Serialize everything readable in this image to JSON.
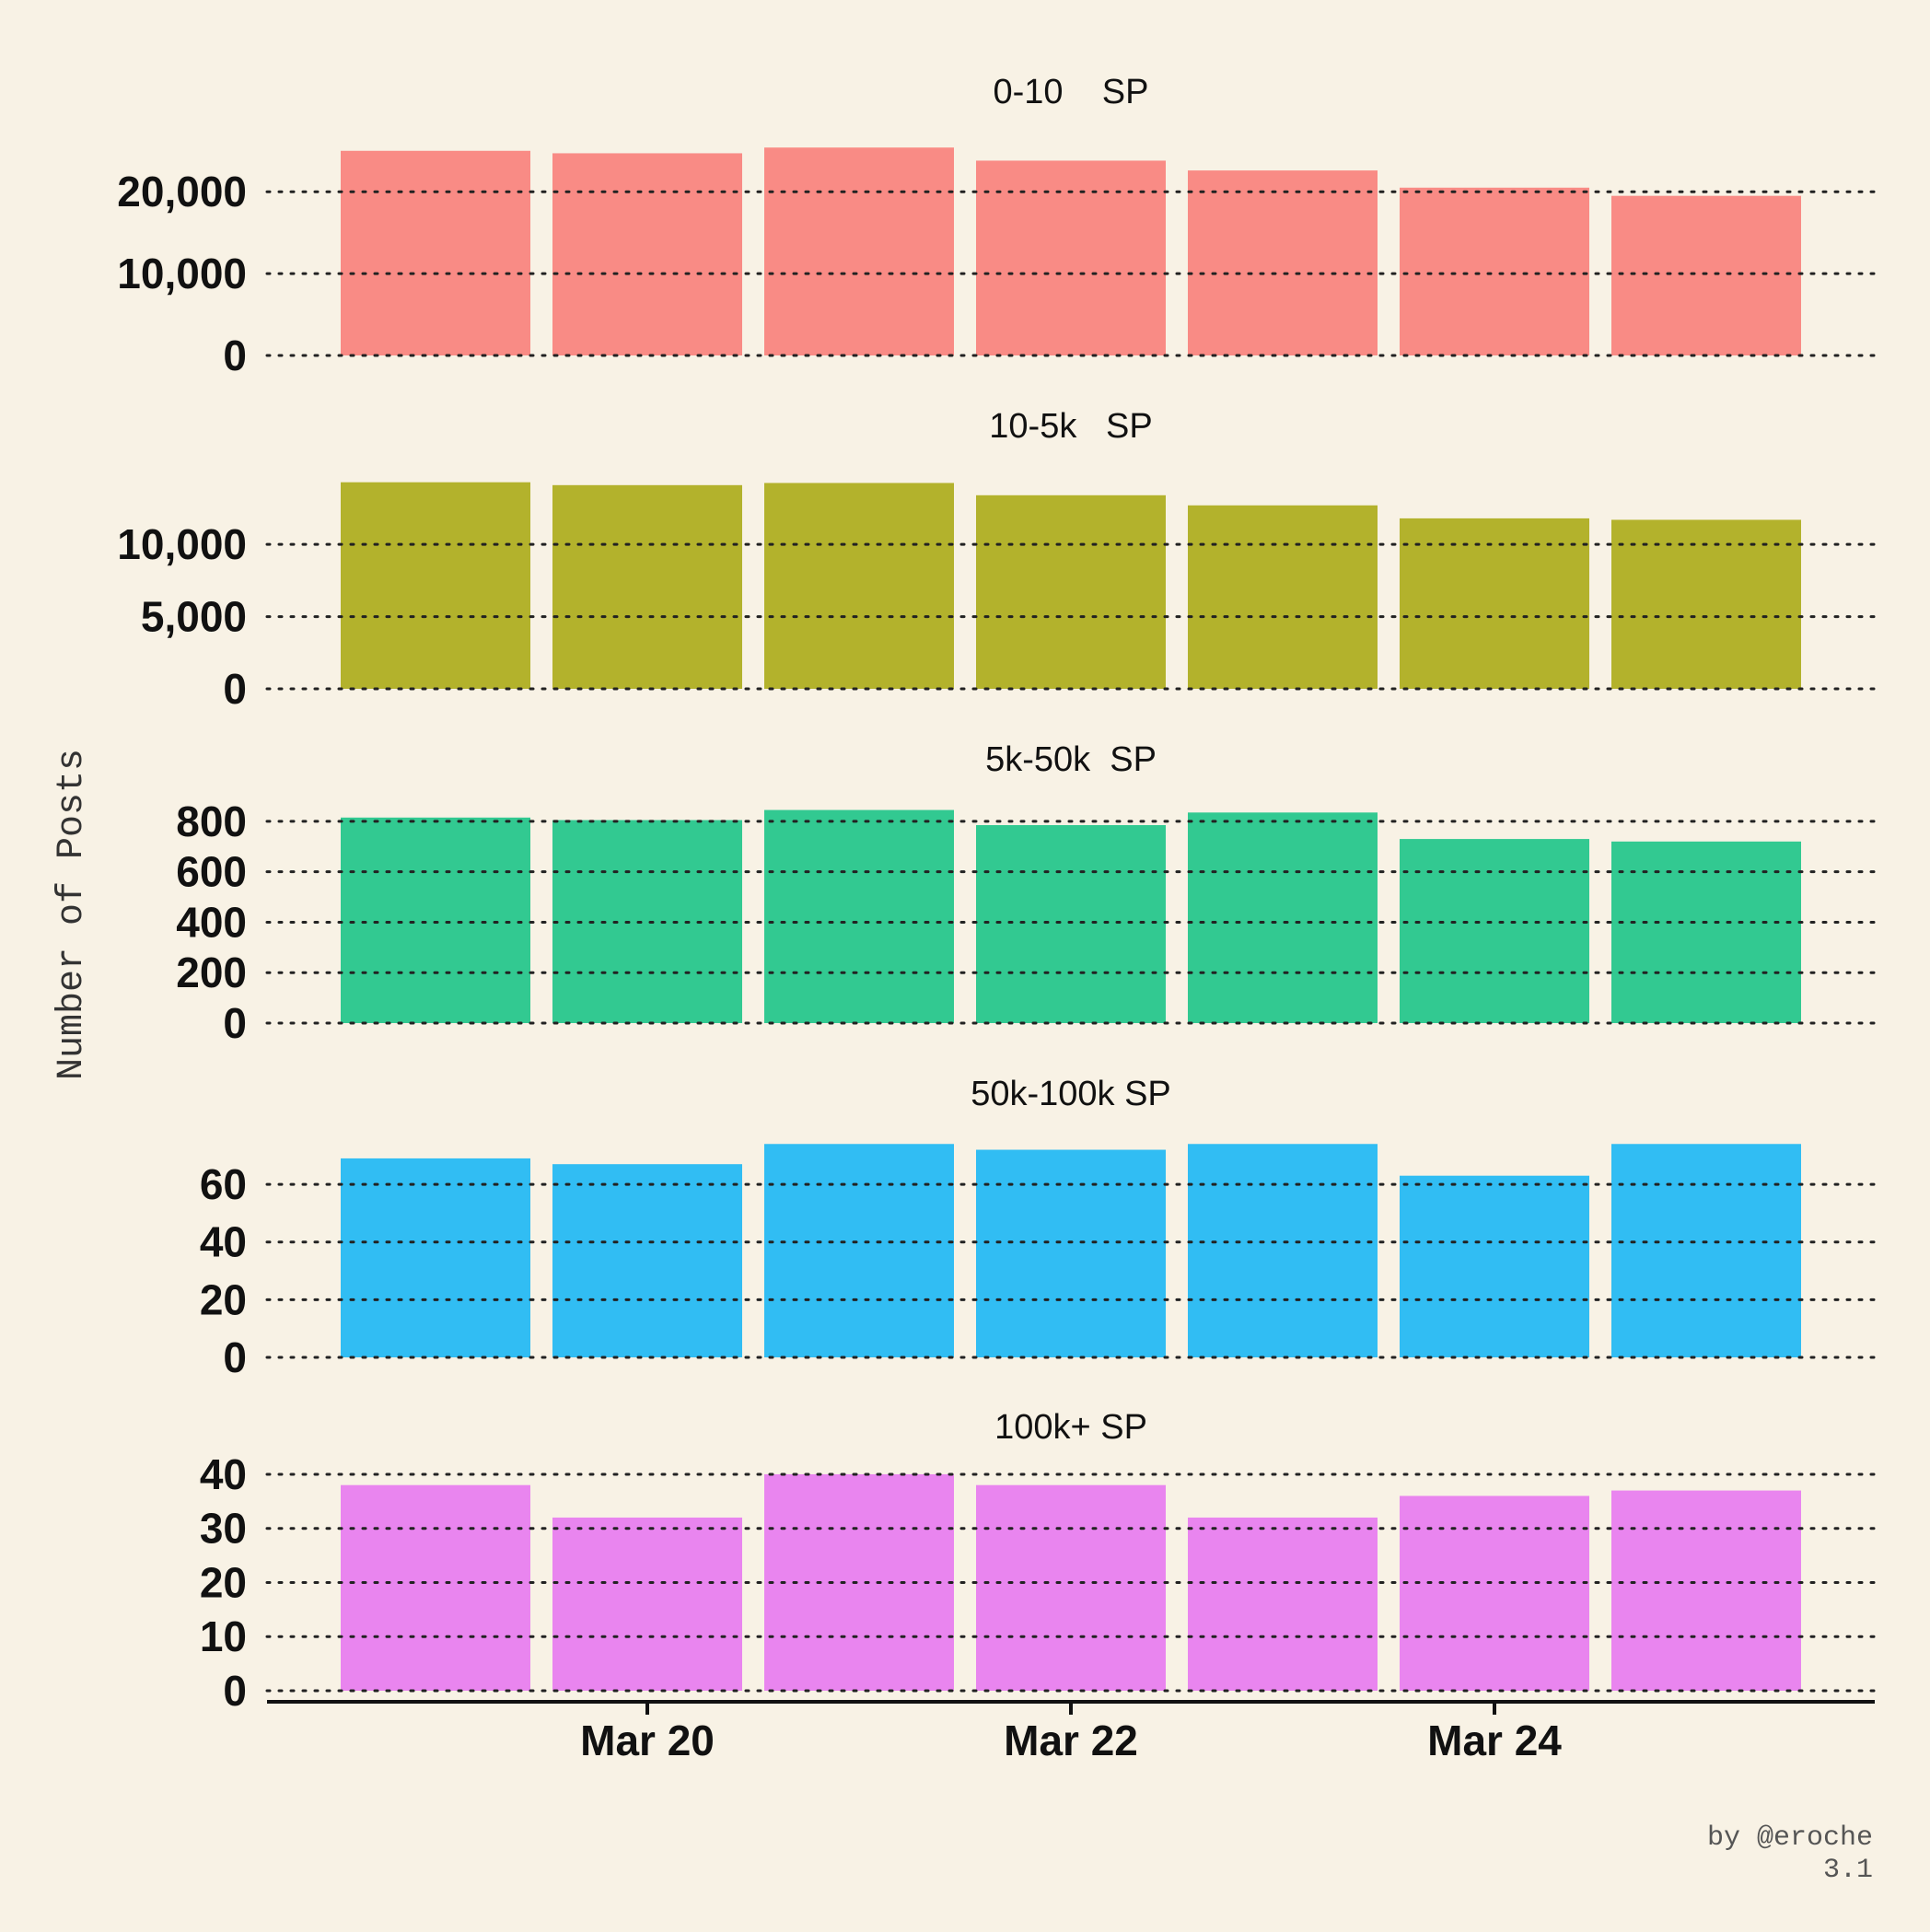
{
  "chart_data": {
    "type": "bar",
    "ylabel": "Number of Posts",
    "x": [
      "2020-03-19",
      "2020-03-20",
      "2020-03-21",
      "2020-03-22",
      "2020-03-23",
      "2020-03-24",
      "2020-03-25"
    ],
    "x_ticks": [
      {
        "x": "2020-03-20",
        "label": "Mar 20"
      },
      {
        "x": "2020-03-22",
        "label": "Mar 22"
      },
      {
        "x": "2020-03-24",
        "label": "Mar 24"
      }
    ],
    "grid": "y dotted",
    "panels": [
      {
        "title": "0-10    SP",
        "color": "#f98b85",
        "values": [
          25000,
          24700,
          25400,
          23800,
          22600,
          20500,
          19500
        ],
        "ylim": [
          0,
          27000
        ],
        "yticks": [
          0,
          10000,
          20000
        ],
        "ytick_labels": [
          "0",
          "10,000",
          "20,000"
        ]
      },
      {
        "title": "10-5k   SP",
        "color": "#b3b22c",
        "values": [
          14300,
          14100,
          14250,
          13400,
          12700,
          11800,
          11700
        ],
        "ylim": [
          0,
          15300
        ],
        "yticks": [
          0,
          5000,
          10000
        ],
        "ytick_labels": [
          "0",
          "5,000",
          "10,000"
        ]
      },
      {
        "title": "5k-50k  SP",
        "color": "#32c991",
        "values": [
          815,
          805,
          845,
          785,
          835,
          730,
          720
        ],
        "ylim": [
          0,
          880
        ],
        "yticks": [
          0,
          200,
          400,
          600,
          800
        ],
        "ytick_labels": [
          "0",
          "200",
          "400",
          "600",
          "800"
        ]
      },
      {
        "title": "50k-100k SP",
        "color": "#31bdf3",
        "values": [
          69,
          67,
          74,
          72,
          74,
          63,
          74
        ],
        "ylim": [
          0,
          76
        ],
        "yticks": [
          0,
          20,
          40,
          60
        ],
        "ytick_labels": [
          "0",
          "20",
          "40",
          "60"
        ]
      },
      {
        "title": "100k+ SP",
        "color": "#e985ef",
        "values": [
          38,
          32,
          40,
          38,
          32,
          36,
          37
        ],
        "ylim": [
          0,
          40.5
        ],
        "yticks": [
          0,
          10,
          20,
          30,
          40
        ],
        "ytick_labels": [
          "0",
          "10",
          "20",
          "30",
          "40"
        ]
      }
    ]
  },
  "credit": {
    "line1": "by @eroche",
    "line2": "3.1"
  }
}
